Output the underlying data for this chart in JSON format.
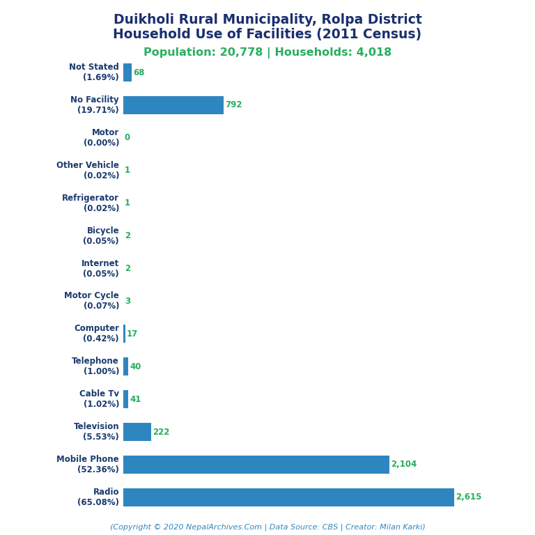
{
  "title_line1": "Duikholi Rural Municipality, Rolpa District",
  "title_line2": "Household Use of Facilities (2011 Census)",
  "subtitle": "Population: 20,778 | Households: 4,018",
  "footer": "(Copyright © 2020 NepalArchives.Com | Data Source: CBS | Creator: Milan Karki)",
  "categories": [
    "Radio\n(65.08%)",
    "Mobile Phone\n(52.36%)",
    "Television\n(5.53%)",
    "Cable Tv\n(1.02%)",
    "Telephone\n(1.00%)",
    "Computer\n(0.42%)",
    "Motor Cycle\n(0.07%)",
    "Internet\n(0.05%)",
    "Bicycle\n(0.05%)",
    "Refrigerator\n(0.02%)",
    "Other Vehicle\n(0.02%)",
    "Motor\n(0.00%)",
    "No Facility\n(19.71%)",
    "Not Stated\n(1.69%)"
  ],
  "values": [
    2615,
    2104,
    222,
    41,
    40,
    17,
    3,
    2,
    2,
    1,
    1,
    0,
    792,
    68
  ],
  "bar_color": "#2e86c1",
  "title_color": "#1a2f6e",
  "subtitle_color": "#27ae60",
  "value_color": "#27ae60",
  "footer_color": "#2e86c1",
  "label_color": "#1a3a6e",
  "background_color": "#ffffff",
  "figsize": [
    7.68,
    7.68
  ],
  "dpi": 100
}
